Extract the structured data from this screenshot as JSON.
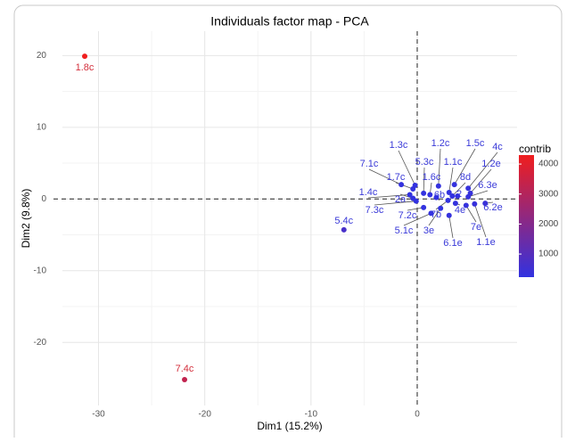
{
  "chart_data": {
    "type": "scatter",
    "title": "Individuals factor map - PCA",
    "x_label": "Dim1 (15.2%)",
    "y_label": "Dim2 (9.8%)",
    "labels": [
      "1.8c",
      "7.4c",
      "5.4c",
      "1.3c",
      "1.2c",
      "1.5c",
      "4c",
      "7.1c",
      "5.3c",
      "1.1c",
      "1.2e",
      "1.7c",
      "1.6c",
      "8d",
      "6.3e",
      "1.4c",
      "2a",
      "6b",
      "2",
      "7.3c",
      "6.2e",
      "7.2c",
      "7b",
      "4e",
      "5.1c",
      "3e",
      "7e",
      "6.1e",
      "1.1e"
    ],
    "x": [
      -31.3,
      -21.9,
      -6.9,
      -0.2,
      2.0,
      3.5,
      4.8,
      -1.5,
      0.6,
      3.0,
      5.0,
      -0.4,
      1.2,
      3.3,
      4.8,
      -0.7,
      -0.4,
      1.8,
      3.8,
      -0.1,
      6.4,
      0.6,
      2.9,
      3.6,
      1.3,
      2.2,
      4.6,
      3.0,
      5.4
    ],
    "y": [
      19.9,
      -25.2,
      -4.3,
      1.9,
      1.8,
      2.0,
      1.5,
      2.0,
      0.8,
      0.9,
      0.8,
      1.4,
      0.6,
      0.4,
      0.3,
      0.6,
      0.1,
      0.2,
      0.4,
      -0.3,
      -0.6,
      -1.2,
      -0.2,
      -0.6,
      -2.0,
      -1.3,
      -0.9,
      -2.3,
      -0.7
    ],
    "contrib": [
      4300,
      3300,
      700,
      260,
      280,
      300,
      320,
      270,
      240,
      250,
      330,
      250,
      240,
      250,
      320,
      240,
      230,
      240,
      270,
      230,
      380,
      240,
      250,
      270,
      260,
      250,
      300,
      290,
      340
    ],
    "xlim": [
      -33.4,
      9.4
    ],
    "ylim": [
      -28.8,
      23.4
    ],
    "xticks": [
      -30,
      -20,
      -10,
      0
    ],
    "yticks": [
      -20,
      -10,
      0,
      10,
      20
    ],
    "grid": true,
    "legend_title": "contrib",
    "contrib_lim": [
      230,
      4300
    ],
    "colorbar_ticks": [
      1000,
      2000,
      3000,
      4000
    ],
    "low_color": "#3232e0",
    "high_color": "#f01e1e",
    "label_color": "#3a3ad8",
    "high_label_color": "#d32f3c"
  }
}
